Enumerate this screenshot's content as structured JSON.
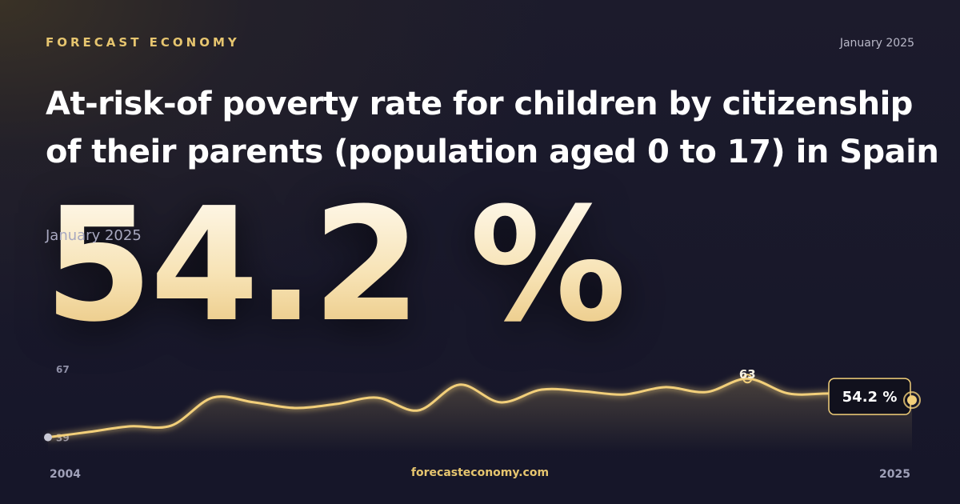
{
  "brand": "FORECAST ECONOMY",
  "date": "January 2025",
  "title": "At-risk-of poverty rate for children by citizenship of their parents (population aged 0 to 17) in Spain",
  "website": "forecasteconomy.com",
  "chart_data": {
    "type": "line",
    "x": [
      2004,
      2005,
      2006,
      2007,
      2008,
      2009,
      2010,
      2011,
      2012,
      2013,
      2014,
      2015,
      2016,
      2017,
      2018,
      2019,
      2020,
      2021,
      2022,
      2023,
      2024,
      2025
    ],
    "series": [
      {
        "color": "#f2cf7a",
        "values": [
          39,
          41.2,
          43.5,
          43.8,
          55.2,
          53.3,
          51.0,
          52.6,
          55.2,
          50.0,
          60.5,
          53.3,
          58.5,
          57.8,
          56.5,
          59.5,
          57.5,
          63,
          56.9,
          56.9,
          56.5,
          54.2
        ],
        "value_labels": [
          null,
          null,
          null,
          null,
          null,
          null,
          null,
          null,
          null,
          null,
          null,
          null,
          null,
          null,
          null,
          null,
          null,
          "63",
          null,
          null,
          null,
          "54.2 %"
        ]
      }
    ],
    "xlim": [
      2004,
      2025
    ],
    "xticks": [
      2004,
      2025
    ],
    "ylim": [
      33,
      67
    ],
    "yticks": [
      39,
      67
    ]
  }
}
